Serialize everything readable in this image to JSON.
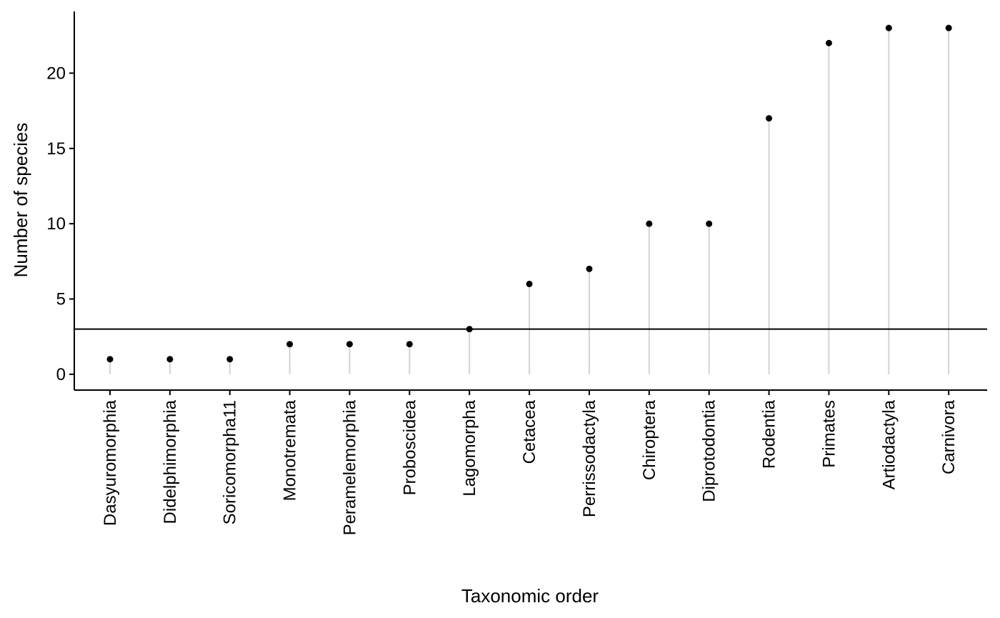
{
  "chart_data": {
    "type": "scatter",
    "style": "lollipop",
    "xlabel": "Taxonomic order",
    "ylabel": "Number of species",
    "categories": [
      "Dasyuromorphia",
      "Didelphimorphia",
      "Soricomorpha11",
      "Monotremata",
      "Peramelemorphia",
      "Proboscidea",
      "Lagomorpha",
      "Cetacea",
      "Perrissodactyla",
      "Chiroptera",
      "Diprotodontia",
      "Rodentia",
      "Primates",
      "Artiodactyla",
      "Carnivora"
    ],
    "values": [
      1,
      1,
      1,
      2,
      2,
      2,
      3,
      6,
      7,
      10,
      10,
      17,
      22,
      23,
      23
    ],
    "y_ticks": [
      "0",
      "5",
      "10",
      "15",
      "20"
    ],
    "ylim": [
      -1.05,
      24.1
    ],
    "reference_line": 3,
    "grid": false,
    "legend": "none",
    "colors": {
      "point": "#000000",
      "stem": "#d3d3d3",
      "axis": "#000000",
      "reference_line": "#000000"
    }
  }
}
